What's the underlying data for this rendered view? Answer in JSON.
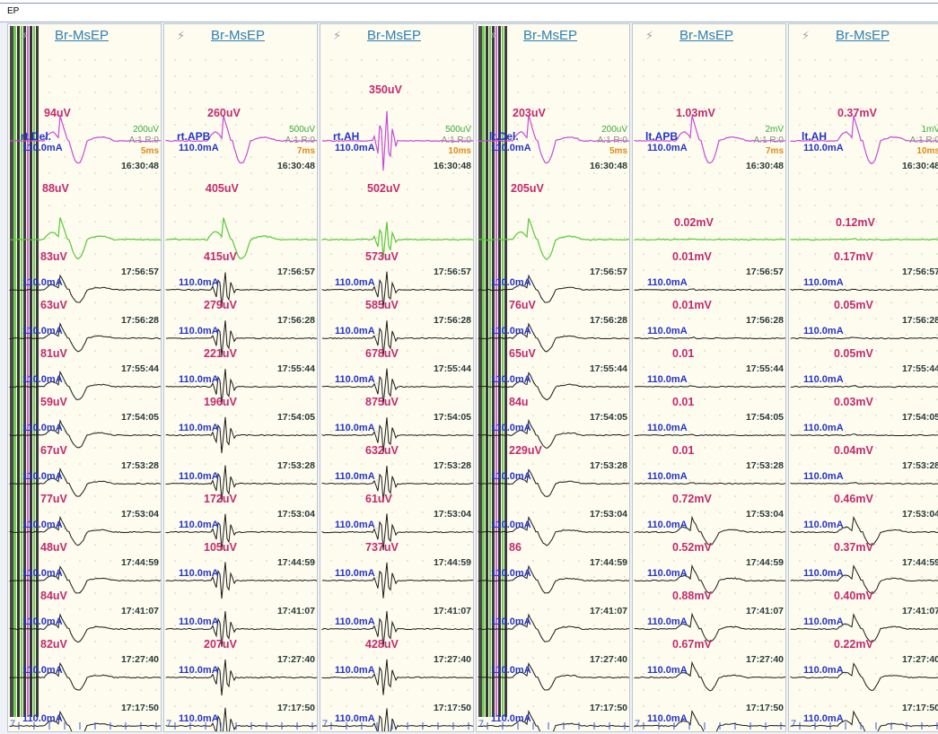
{
  "window": {
    "title": "EP"
  },
  "colors": {
    "amplitude": "#c42a6e",
    "current": "#2434c8",
    "timestamp": "#2a3a3a",
    "modality": "#2f7fb5",
    "trace_top": "#c84ad8",
    "trace_second": "#58c838",
    "trace_other": "#1a1a1a"
  },
  "panels": [
    {
      "modality": "Br-MsEP",
      "stim_icon": "lightning-icon",
      "site": "rt.Del.",
      "scale": {
        "volts": "200uV",
        "avg": "A:1 R:0",
        "time": "5ms"
      },
      "top_amplitude": "94uV",
      "top_time": "16:30:48",
      "second_amplitude": "88uV",
      "traces": [
        {
          "amplitude": "83uV",
          "current": "110.0mA",
          "time": "17:56:57"
        },
        {
          "amplitude": "63uV",
          "current": "110.0mA",
          "time": "17:56:28"
        },
        {
          "amplitude": "81uV",
          "current": "110.0mA",
          "time": "17:55:44"
        },
        {
          "amplitude": "59uV",
          "current": "110.0mA",
          "time": "17:54:05"
        },
        {
          "amplitude": "67uV",
          "current": "110.0mA",
          "time": "17:53:28"
        },
        {
          "amplitude": "77uV",
          "current": "110.0mA",
          "time": "17:53:04"
        },
        {
          "amplitude": "48uV",
          "current": "110.0mA",
          "time": "17:44:59"
        },
        {
          "amplitude": "84uV",
          "current": "110.0mA",
          "time": "17:41:07"
        },
        {
          "amplitude": "82uV",
          "current": "110.0mA",
          "time": "17:27:40"
        },
        {
          "amplitude": "",
          "current": "110.0mA",
          "time": "17:17:50"
        }
      ]
    },
    {
      "modality": "Br-MsEP",
      "stim_icon": "lightning-icon",
      "site": "rt.APB",
      "scale": {
        "volts": "500uV",
        "avg": "A:1 R:0",
        "time": "7ms"
      },
      "top_amplitude": "260uV",
      "top_time": "16:30:48",
      "second_amplitude": "405uV",
      "traces": [
        {
          "amplitude": "415uV",
          "current": "110.0mA",
          "time": "17:56:57"
        },
        {
          "amplitude": "279uV",
          "current": "110.0mA",
          "time": "17:56:28"
        },
        {
          "amplitude": "221uV",
          "current": "110.0mA",
          "time": "17:55:44"
        },
        {
          "amplitude": "196uV",
          "current": "110.0mA",
          "time": "17:54:05"
        },
        {
          "amplitude": "",
          "current": "110.0mA",
          "time": "17:53:28"
        },
        {
          "amplitude": "172uV",
          "current": "110.0mA",
          "time": "17:53:04"
        },
        {
          "amplitude": "105uV",
          "current": "110.0mA",
          "time": "17:44:59"
        },
        {
          "amplitude": "",
          "current": "110.0mA",
          "time": "17:41:07"
        },
        {
          "amplitude": "207uV",
          "current": "110.0mA",
          "time": "17:27:40"
        },
        {
          "amplitude": "",
          "current": "110.0mA",
          "time": "17:17:50"
        }
      ]
    },
    {
      "modality": "Br-MsEP",
      "stim_icon": "lightning-icon",
      "site": "rt.AH",
      "scale": {
        "volts": "500uV",
        "avg": "A:1 R:0",
        "time": "10ms"
      },
      "top_amplitude": "350uV",
      "top_time": "16:30:48",
      "second_amplitude": "502uV",
      "traces": [
        {
          "amplitude": "573uV",
          "current": "110.0mA",
          "time": "17:56:57"
        },
        {
          "amplitude": "585uV",
          "current": "110.0mA",
          "time": "17:56:28"
        },
        {
          "amplitude": "678uV",
          "current": "110.0mA",
          "time": "17:55:44"
        },
        {
          "amplitude": "875uV",
          "current": "110.0mA",
          "time": "17:54:05"
        },
        {
          "amplitude": "632uV",
          "current": "110.0mA",
          "time": "17:53:28"
        },
        {
          "amplitude": "61uV",
          "current": "110.0mA",
          "time": "17:53:04"
        },
        {
          "amplitude": "737uV",
          "current": "110.0mA",
          "time": "17:44:59"
        },
        {
          "amplitude": "",
          "current": "110.0mA",
          "time": "17:41:07"
        },
        {
          "amplitude": "428uV",
          "current": "110.0mA",
          "time": "17:27:40"
        },
        {
          "amplitude": "",
          "current": "110.0mA",
          "time": "17:17:50"
        }
      ]
    },
    {
      "modality": "Br-MsEP",
      "stim_icon": "lightning-icon",
      "site": "lt.Del.",
      "scale": {
        "volts": "200uV",
        "avg": "A:1 R:0",
        "time": "5ms"
      },
      "top_amplitude": "203uV",
      "top_time": "16:30:48",
      "second_amplitude": "205uV",
      "traces": [
        {
          "amplitude": "",
          "current": "110.0mA",
          "time": "17:56:57"
        },
        {
          "amplitude": "76uV",
          "current": "110.0mA",
          "time": "17:56:28"
        },
        {
          "amplitude": "65uV",
          "current": "110.0mA",
          "time": "17:55:44"
        },
        {
          "amplitude": "84u",
          "current": "110.0mA",
          "time": "17:54:05"
        },
        {
          "amplitude": "229uV",
          "current": "110.0mA",
          "time": "17:53:28"
        },
        {
          "amplitude": "",
          "current": "110.0mA",
          "time": "17:53:04"
        },
        {
          "amplitude": "86",
          "current": "110.0mA",
          "time": "17:44:59"
        },
        {
          "amplitude": "",
          "current": "110.0mA",
          "time": "17:41:07"
        },
        {
          "amplitude": "",
          "current": "110.0mA",
          "time": "17:27:40"
        },
        {
          "amplitude": "",
          "current": "110.0mA",
          "time": "17:17:50"
        }
      ]
    },
    {
      "modality": "Br-MsEP",
      "stim_icon": "lightning-icon",
      "site": "lt.APB",
      "scale": {
        "volts": "2mV",
        "avg": "A:1 R:0",
        "time": "7ms"
      },
      "top_amplitude": "1.03mV",
      "top_time": "16:30:48",
      "second_amplitude": "0.02mV",
      "traces": [
        {
          "amplitude": "0.01mV",
          "current": "110.0mA",
          "time": "17:56:57"
        },
        {
          "amplitude": "0.01mV",
          "current": "110.0mA",
          "time": "17:56:28"
        },
        {
          "amplitude": "0.01",
          "current": "110.0mA",
          "time": "17:55:44"
        },
        {
          "amplitude": "0.01",
          "current": "110.0mA",
          "time": "17:54:05"
        },
        {
          "amplitude": "0.01",
          "current": "110.0mA",
          "time": "17:53:28"
        },
        {
          "amplitude": "0.72mV",
          "current": "110.0mA",
          "time": "17:53:04"
        },
        {
          "amplitude": "0.52mV",
          "current": "110.0mA",
          "time": "17:44:59"
        },
        {
          "amplitude": "0.88mV",
          "current": "110.0mA",
          "time": "17:41:07"
        },
        {
          "amplitude": "0.67mV",
          "current": "110.0mA",
          "time": "17:27:40"
        },
        {
          "amplitude": "",
          "current": "110.0mA",
          "time": "17:17:50"
        }
      ]
    },
    {
      "modality": "Br-MsEP",
      "stim_icon": "lightning-icon",
      "site": "lt.AH",
      "scale": {
        "volts": "1mV",
        "avg": "A:1 R:0",
        "time": "10ms"
      },
      "top_amplitude": "0.37mV",
      "top_time": "16:30:48",
      "second_amplitude": "0.12mV",
      "traces": [
        {
          "amplitude": "0.17mV",
          "current": "110.0mA",
          "time": "17:56:57"
        },
        {
          "amplitude": "0.05mV",
          "current": "110.0mA",
          "time": "17:56:28"
        },
        {
          "amplitude": "0.05mV",
          "current": "110.0mA",
          "time": "17:55:44"
        },
        {
          "amplitude": "0.03mV",
          "current": "110.0mA",
          "time": "17:54:05"
        },
        {
          "amplitude": "0.04mV",
          "current": "110.0mA",
          "time": "17:53:28"
        },
        {
          "amplitude": "0.46mV",
          "current": "110.0mA",
          "time": "17:53:04"
        },
        {
          "amplitude": "0.37mV",
          "current": "110.0mA",
          "time": "17:44:59"
        },
        {
          "amplitude": "0.40mV",
          "current": "110.0mA",
          "time": "17:41:07"
        },
        {
          "amplitude": "0.22mV",
          "current": "110.0mA",
          "time": "17:27:40"
        },
        {
          "amplitude": "",
          "current": "110.0mA",
          "time": "17:17:50"
        }
      ]
    }
  ]
}
